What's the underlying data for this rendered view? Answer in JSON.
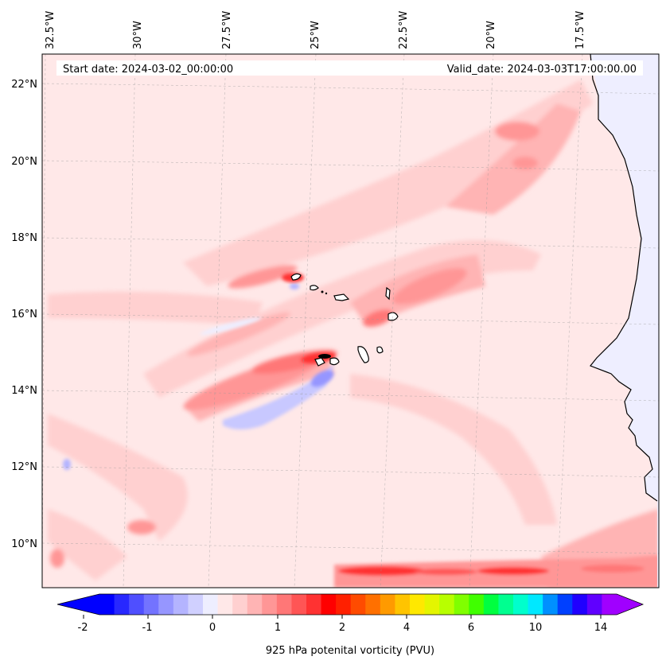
{
  "map": {
    "start_label": "Start date: 2024-03-02_00:00:00",
    "valid_label": "Valid_date: 2024-03-03T17:00:00.00",
    "lon_labels": [
      "32.5°W",
      "30°W",
      "27.5°W",
      "25°W",
      "22.5°W",
      "20°W",
      "17.5°W"
    ],
    "lat_labels": [
      "22°N",
      "20°N",
      "18°N",
      "16°N",
      "14°N",
      "12°N",
      "10°N"
    ]
  },
  "colorbar": {
    "tick_labels": [
      "-2",
      "-1",
      "0",
      "1",
      "2",
      "4",
      "6",
      "10",
      "14"
    ],
    "title": "925 hPa potenital vorticity (PVU)",
    "colors": [
      "#0000ff",
      "#2828ff",
      "#4f4fff",
      "#7373ff",
      "#9696ff",
      "#b4b4ff",
      "#d0d0ff",
      "#eeeeff",
      "#ffe8e8",
      "#ffd0d0",
      "#ffb4b4",
      "#ff9696",
      "#ff7777",
      "#ff5555",
      "#ff3232",
      "#ff0000",
      "#ff2000",
      "#ff4b00",
      "#ff7000",
      "#ff9a00",
      "#ffc400",
      "#ffe800",
      "#e4f500",
      "#b8ff00",
      "#80ff00",
      "#40ff00",
      "#00ff40",
      "#00ff90",
      "#00ffcc",
      "#00e8ff",
      "#0090ff",
      "#0040ff",
      "#2000ff",
      "#6000ff",
      "#a000ff"
    ]
  }
}
